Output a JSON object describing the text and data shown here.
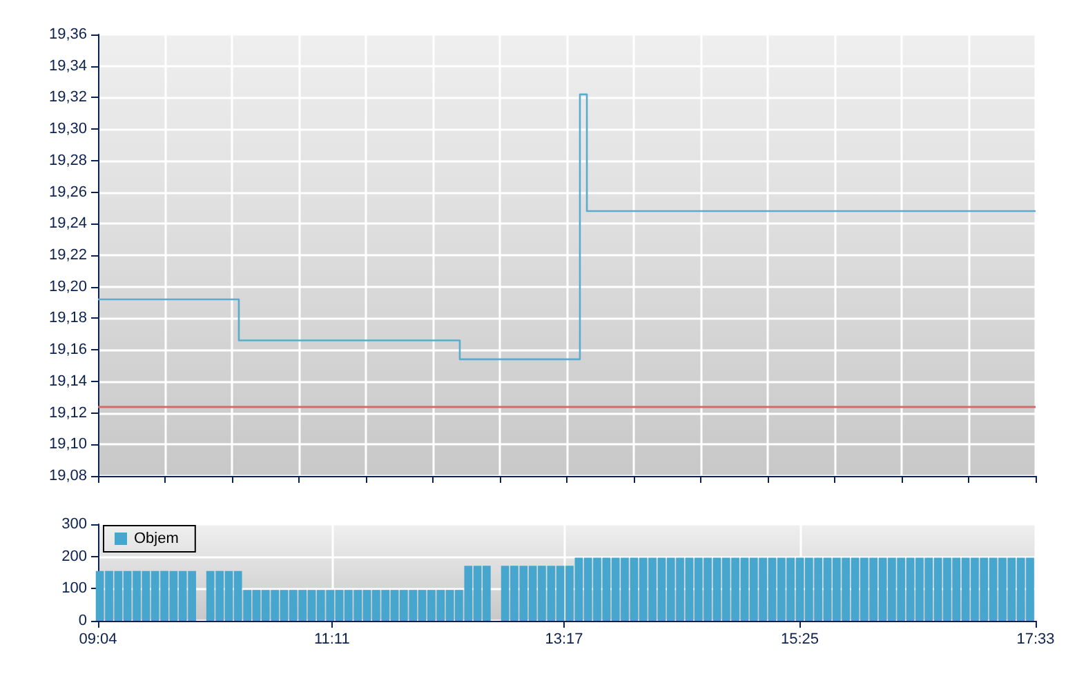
{
  "chart_data": [
    {
      "type": "step",
      "color": "#5aaccc",
      "x": [
        9.0667,
        10.341,
        12.34,
        13.427,
        13.49,
        17.55
      ],
      "values": [
        19.192,
        19.166,
        19.154,
        19.322,
        19.248,
        19.248
      ],
      "xlim": [
        9.0667,
        17.55
      ],
      "xticks": [
        {
          "value": 9.0667,
          "label": null
        },
        {
          "value": 9.673,
          "label": null
        },
        {
          "value": 10.279,
          "label": null
        },
        {
          "value": 10.885,
          "label": null
        },
        {
          "value": 11.491,
          "label": null
        },
        {
          "value": 12.097,
          "label": null
        },
        {
          "value": 12.703,
          "label": null
        },
        {
          "value": 13.309,
          "label": null
        },
        {
          "value": 13.915,
          "label": null
        },
        {
          "value": 14.521,
          "label": null
        },
        {
          "value": 15.127,
          "label": null
        },
        {
          "value": 15.733,
          "label": null
        },
        {
          "value": 16.339,
          "label": null
        },
        {
          "value": 16.945,
          "label": null
        },
        {
          "value": 17.55,
          "label": null
        }
      ],
      "ylim": [
        19.08,
        19.36
      ],
      "yticks": [
        {
          "value": 19.08,
          "label": "19,08"
        },
        {
          "value": 19.1,
          "label": "19,10"
        },
        {
          "value": 19.12,
          "label": "19,12"
        },
        {
          "value": 19.14,
          "label": "19,14"
        },
        {
          "value": 19.16,
          "label": "19,16"
        },
        {
          "value": 19.18,
          "label": "19,18"
        },
        {
          "value": 19.2,
          "label": "19,20"
        },
        {
          "value": 19.22,
          "label": "19,22"
        },
        {
          "value": 19.24,
          "label": "19,24"
        },
        {
          "value": 19.26,
          "label": "19,26"
        },
        {
          "value": 19.28,
          "label": "19,28"
        },
        {
          "value": 19.3,
          "label": "19,30"
        },
        {
          "value": 19.32,
          "label": "19,32"
        },
        {
          "value": 19.34,
          "label": "19,34"
        },
        {
          "value": 19.36,
          "label": "19,36"
        }
      ],
      "ref_lines": [
        {
          "axis": "y",
          "value": 19.124,
          "color": "#d46a6a"
        }
      ],
      "grid": true,
      "tick_labels": "y"
    },
    {
      "type": "bar",
      "legend": "top left",
      "x": [
        9.083,
        9.167,
        9.25,
        9.333,
        9.417,
        9.5,
        9.583,
        9.667,
        9.75,
        9.833,
        9.917,
        10,
        10.083,
        10.167,
        10.25,
        10.333,
        10.417,
        10.5,
        10.583,
        10.667,
        10.75,
        10.833,
        10.917,
        11,
        11.083,
        11.167,
        11.25,
        11.333,
        11.417,
        11.5,
        11.583,
        11.667,
        11.75,
        11.833,
        11.917,
        12,
        12.083,
        12.167,
        12.25,
        12.333,
        12.417,
        12.5,
        12.583,
        12.667,
        12.75,
        12.833,
        12.917,
        13,
        13.083,
        13.167,
        13.25,
        13.333,
        13.417,
        13.5,
        13.583,
        13.667,
        13.75,
        13.833,
        13.917,
        14,
        14.083,
        14.167,
        14.25,
        14.333,
        14.417,
        14.5,
        14.583,
        14.667,
        14.75,
        14.833,
        14.917,
        15,
        15.083,
        15.167,
        15.25,
        15.333,
        15.417,
        15.5,
        15.583,
        15.667,
        15.75,
        15.833,
        15.917,
        16,
        16.083,
        16.167,
        16.25,
        16.333,
        16.417,
        16.5,
        16.583,
        16.667,
        16.75,
        16.833,
        16.917,
        17,
        17.083,
        17.167,
        17.25,
        17.333,
        17.417,
        17.5
      ],
      "series": [
        {
          "name": "Objem",
          "color": "#46a6ce",
          "values": [
            155,
            155,
            155,
            155,
            155,
            155,
            155,
            155,
            155,
            155,
            155,
            null,
            155,
            155,
            155,
            155,
            96,
            96,
            96,
            96,
            96,
            96,
            96,
            96,
            96,
            96,
            96,
            96,
            96,
            96,
            96,
            96,
            96,
            96,
            96,
            96,
            96,
            96,
            96,
            96,
            171,
            171,
            171,
            null,
            171,
            171,
            171,
            171,
            171,
            171,
            171,
            171,
            196,
            196,
            196,
            196,
            196,
            196,
            196,
            196,
            196,
            196,
            196,
            196,
            196,
            196,
            196,
            196,
            196,
            196,
            196,
            196,
            196,
            196,
            196,
            196,
            196,
            196,
            196,
            196,
            196,
            196,
            196,
            196,
            196,
            196,
            196,
            196,
            196,
            196,
            196,
            196,
            196,
            196,
            196,
            196,
            196,
            196,
            196,
            196,
            196,
            196
          ]
        }
      ],
      "xlim": [
        9.0667,
        17.55
      ],
      "xticks": [
        {
          "value": 9.0667,
          "label": "09:04"
        },
        {
          "value": 11.1833,
          "label": "11:11"
        },
        {
          "value": 13.2833,
          "label": "13:17"
        },
        {
          "value": 15.4167,
          "label": "15:25"
        },
        {
          "value": 17.55,
          "label": "17:33"
        }
      ],
      "ylim": [
        0,
        300
      ],
      "yticks": [
        0,
        100,
        200,
        300
      ],
      "grid": true
    }
  ]
}
